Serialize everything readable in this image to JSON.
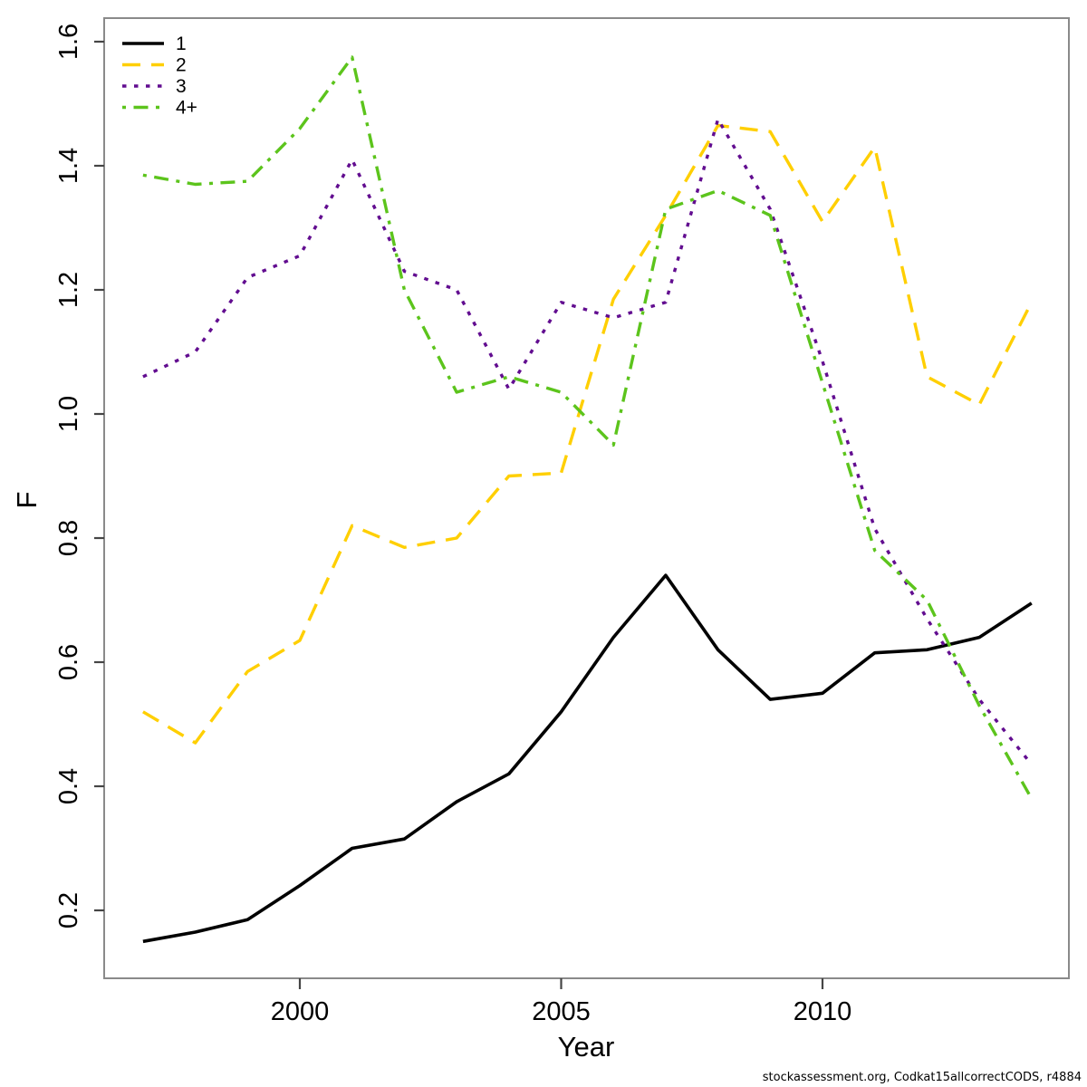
{
  "footer_credit": "stockassessment.org, Codkat15allcorrectCODS, r4884",
  "chart_data": {
    "type": "line",
    "title": "",
    "xlabel": "Year",
    "ylabel": "F",
    "x": [
      1997,
      1998,
      1999,
      2000,
      2001,
      2002,
      2003,
      2004,
      2005,
      2006,
      2007,
      2008,
      2009,
      2010,
      2011,
      2012,
      2013,
      2014
    ],
    "xticks": [
      "2000",
      "2005",
      "2010"
    ],
    "xtick_values": [
      2000,
      2005,
      2010
    ],
    "yticks": [
      "0.2",
      "0.4",
      "0.6",
      "0.8",
      "1.0",
      "1.2",
      "1.4",
      "1.6"
    ],
    "ytick_values": [
      0.2,
      0.4,
      0.6,
      0.8,
      1.0,
      1.2,
      1.4,
      1.6
    ],
    "xlim": [
      1996.3,
      2014.7
    ],
    "ylim": [
      0.09,
      1.63
    ],
    "grid": false,
    "legend_position": "top-left",
    "frame_color": "#8a8a8a",
    "tick_color": "#454545",
    "series": [
      {
        "name": "1",
        "color": "#000000",
        "dash": "solid",
        "width": 3.6,
        "values": [
          0.15,
          0.165,
          0.185,
          0.24,
          0.3,
          0.315,
          0.375,
          0.42,
          0.52,
          0.64,
          0.74,
          0.62,
          0.54,
          0.55,
          0.615,
          0.62,
          0.64,
          0.695
        ]
      },
      {
        "name": "2",
        "color": "#ffcf00",
        "dash": "dashed",
        "width": 3.4,
        "values": [
          0.52,
          0.47,
          0.585,
          0.635,
          0.82,
          0.785,
          0.8,
          0.9,
          0.905,
          1.185,
          1.32,
          1.465,
          1.455,
          1.31,
          1.43,
          1.06,
          1.015,
          1.18
        ]
      },
      {
        "name": "3",
        "color": "#620d90",
        "dash": "dotted",
        "width": 3.4,
        "values": [
          1.06,
          1.1,
          1.22,
          1.255,
          1.41,
          1.23,
          1.2,
          1.04,
          1.18,
          1.155,
          1.18,
          1.475,
          1.33,
          1.085,
          0.815,
          0.67,
          0.54,
          0.435
        ]
      },
      {
        "name": "4+",
        "color": "#5cc41c",
        "dash": "dotdash",
        "width": 3.4,
        "values": [
          1.385,
          1.37,
          1.375,
          1.46,
          1.575,
          1.2,
          1.035,
          1.06,
          1.035,
          0.95,
          1.33,
          1.36,
          1.32,
          1.05,
          0.78,
          0.7,
          0.53,
          0.38
        ]
      }
    ]
  }
}
